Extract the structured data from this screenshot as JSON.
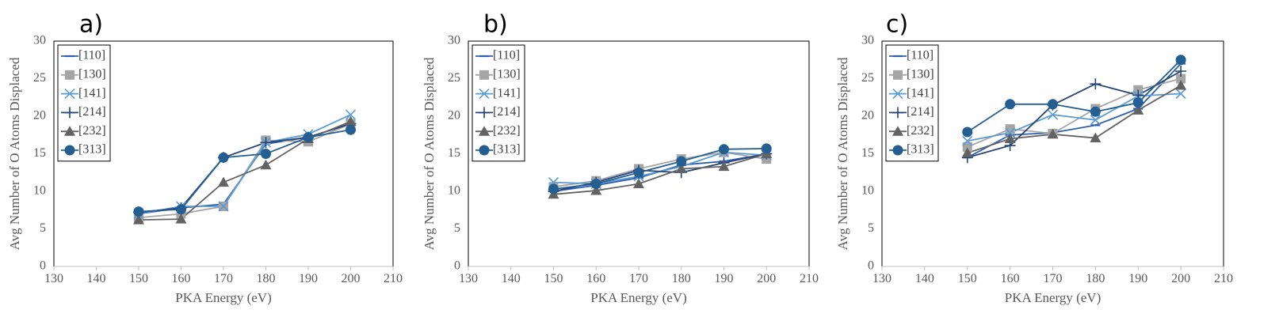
{
  "chart_data": [
    {
      "type": "line",
      "panel_label": "a)",
      "xlabel": "PKA Energy (eV)",
      "ylabel": "Avg Number of O Atoms Displaced",
      "xlim": [
        130,
        210
      ],
      "ylim": [
        0,
        30
      ],
      "xticks": [
        "130",
        "140",
        "150",
        "160",
        "170",
        "180",
        "190",
        "200",
        "210"
      ],
      "yticks": [
        "0",
        "5",
        "10",
        "15",
        "20",
        "25",
        "30"
      ],
      "x": [
        150,
        160,
        170,
        180,
        190,
        200
      ],
      "legend_position": "top-left",
      "series": [
        {
          "name": "[110]",
          "values": [
            7.0,
            7.8,
            8.3,
            16.3,
            17.2,
            19.0
          ]
        },
        {
          "name": "[130]",
          "values": [
            6.5,
            7.0,
            8.0,
            16.8,
            16.6,
            19.0
          ]
        },
        {
          "name": "[141]",
          "values": [
            7.0,
            8.0,
            8.0,
            16.5,
            17.6,
            20.2
          ]
        },
        {
          "name": "[214]",
          "values": [
            7.2,
            7.8,
            14.5,
            16.5,
            17.2,
            19.0
          ]
        },
        {
          "name": "[232]",
          "values": [
            6.2,
            6.3,
            11.2,
            13.5,
            17.0,
            19.3
          ]
        },
        {
          "name": "[313]",
          "values": [
            7.3,
            7.6,
            14.5,
            15.0,
            17.2,
            18.2
          ]
        }
      ]
    },
    {
      "type": "line",
      "panel_label": "b)",
      "xlabel": "PKA Energy (eV)",
      "ylabel": "Avg Number of O Atoms Displaced",
      "xlim": [
        130,
        210
      ],
      "ylim": [
        0,
        30
      ],
      "xticks": [
        "130",
        "140",
        "150",
        "160",
        "170",
        "180",
        "190",
        "200",
        "210"
      ],
      "yticks": [
        "0",
        "5",
        "10",
        "15",
        "20",
        "25",
        "30"
      ],
      "x": [
        150,
        160,
        170,
        180,
        190,
        200
      ],
      "legend_position": "top-left",
      "series": [
        {
          "name": "[110]",
          "values": [
            10.0,
            10.8,
            11.8,
            13.5,
            14.0,
            15.0
          ]
        },
        {
          "name": "[130]",
          "values": [
            10.6,
            11.4,
            13.0,
            14.3,
            15.2,
            14.3
          ]
        },
        {
          "name": "[141]",
          "values": [
            11.2,
            11.0,
            12.0,
            13.3,
            15.2,
            14.8
          ]
        },
        {
          "name": "[214]",
          "values": [
            10.0,
            11.2,
            12.8,
            12.5,
            13.8,
            15.0
          ]
        },
        {
          "name": "[232]",
          "values": [
            9.6,
            10.1,
            11.0,
            13.0,
            13.3,
            15.0
          ]
        },
        {
          "name": "[313]",
          "values": [
            10.3,
            11.0,
            12.5,
            14.0,
            15.6,
            15.7
          ]
        }
      ]
    },
    {
      "type": "line",
      "panel_label": "c)",
      "xlabel": "PKA Energy (eV)",
      "ylabel": "Avg Number of O Atoms Displaced",
      "xlim": [
        130,
        210
      ],
      "ylim": [
        0,
        30
      ],
      "xticks": [
        "130",
        "140",
        "150",
        "160",
        "170",
        "180",
        "190",
        "200",
        "210"
      ],
      "yticks": [
        "0",
        "5",
        "10",
        "15",
        "20",
        "25",
        "30"
      ],
      "x": [
        150,
        160,
        170,
        180,
        190,
        200
      ],
      "legend_position": "top-left",
      "series": [
        {
          "name": "[110]",
          "values": [
            14.5,
            17.5,
            17.8,
            18.8,
            21.0,
            27.0
          ]
        },
        {
          "name": "[130]",
          "values": [
            15.9,
            18.3,
            17.7,
            21.0,
            23.5,
            25.0
          ]
        },
        {
          "name": "[141]",
          "values": [
            16.7,
            17.8,
            20.2,
            19.5,
            22.7,
            23.0
          ]
        },
        {
          "name": "[214]",
          "values": [
            14.5,
            16.1,
            21.5,
            24.3,
            22.8,
            26.0
          ]
        },
        {
          "name": "[232]",
          "values": [
            15.1,
            17.0,
            17.6,
            17.1,
            20.8,
            24.1
          ]
        },
        {
          "name": "[313]",
          "values": [
            17.9,
            21.6,
            21.6,
            20.6,
            21.8,
            27.5
          ]
        }
      ]
    }
  ],
  "colors": {
    "[110]": "#2e5fae",
    "[130]": "#a5a5a5",
    "[141]": "#5b9bd5",
    "[214]": "#264478",
    "[232]": "#636363",
    "[313]": "#255e91",
    "axis": "#bfbfbf",
    "plot_border": "#000000",
    "tick_text": "#595959"
  },
  "markers": {
    "[110]": "dash",
    "[130]": "square",
    "[141]": "x",
    "[214]": "plus",
    "[232]": "triangle",
    "[313]": "circle"
  }
}
